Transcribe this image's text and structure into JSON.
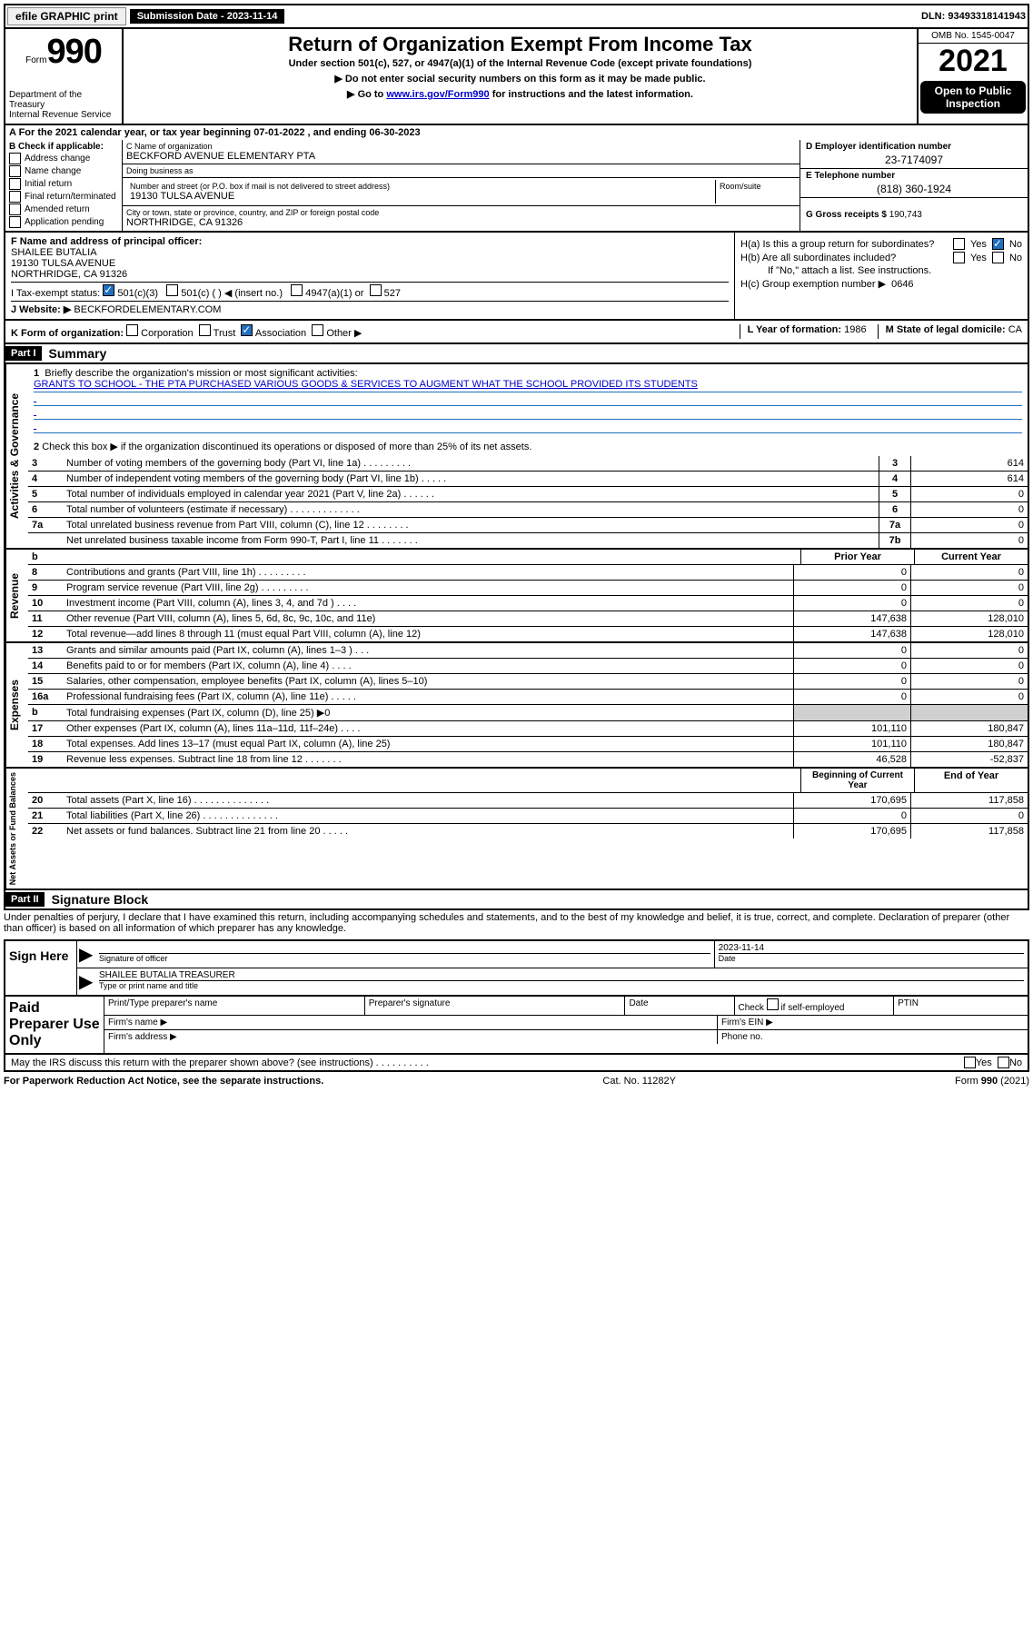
{
  "top": {
    "efile": "efile GRAPHIC print",
    "submission_label": "Submission Date - 2023-11-14",
    "dln": "DLN: 93493318141943"
  },
  "header": {
    "form_word": "Form",
    "form_num": "990",
    "dept": "Department of the Treasury\nInternal Revenue Service",
    "title": "Return of Organization Exempt From Income Tax",
    "sub": "Under section 501(c), 527, or 4947(a)(1) of the Internal Revenue Code (except private foundations)",
    "instr1": "▶ Do not enter social security numbers on this form as it may be made public.",
    "instr2_pre": "▶ Go to ",
    "instr2_link": "www.irs.gov/Form990",
    "instr2_post": " for instructions and the latest information.",
    "omb": "OMB No. 1545-0047",
    "year": "2021",
    "open": "Open to Public Inspection"
  },
  "line_a": "A For the 2021 calendar year, or tax year beginning 07-01-2022   , and ending 06-30-2023",
  "b": {
    "title": "B Check if applicable:",
    "opts": [
      "Address change",
      "Name change",
      "Initial return",
      "Final return/terminated",
      "Amended return",
      "Application pending"
    ]
  },
  "c": {
    "name_lbl": "C Name of organization",
    "name": "BECKFORD AVENUE ELEMENTARY PTA",
    "dba_lbl": "Doing business as",
    "dba": "",
    "street_lbl": "Number and street (or P.O. box if mail is not delivered to street address)",
    "street": "19130 TULSA AVENUE",
    "room_lbl": "Room/suite",
    "city_lbl": "City or town, state or province, country, and ZIP or foreign postal code",
    "city": "NORTHRIDGE, CA  91326"
  },
  "d": {
    "ein_lbl": "D Employer identification number",
    "ein": "23-7174097",
    "tel_lbl": "E Telephone number",
    "tel": "(818) 360-1924",
    "gross_lbl": "G Gross receipts $",
    "gross": "190,743"
  },
  "f": {
    "lbl": "F Name and address of principal officer:",
    "name": "SHAILEE BUTALIA",
    "street": "19130 TULSA AVENUE",
    "city": "NORTHRIDGE, CA  91326"
  },
  "i": {
    "lbl": "I    Tax-exempt status:",
    "o1": "501(c)(3)",
    "o2": "501(c) (  ) ◀ (insert no.)",
    "o3": "4947(a)(1) or",
    "o4": "527"
  },
  "j": {
    "lbl": "J    Website: ▶",
    "val": "BECKFORDELEMENTARY.COM"
  },
  "h": {
    "a_lbl": "H(a)  Is this a group return for subordinates?",
    "b_lbl": "H(b)  Are all subordinates included?",
    "b_note": "If \"No,\" attach a list. See instructions.",
    "c_lbl": "H(c)  Group exemption number ▶",
    "c_val": "0646",
    "yes": "Yes",
    "no": "No"
  },
  "k": {
    "lbl": "K Form of organization:",
    "o1": "Corporation",
    "o2": "Trust",
    "o3": "Association",
    "o4": "Other ▶"
  },
  "lm": {
    "l_lbl": "L Year of formation:",
    "l_val": "1986",
    "m_lbl": "M State of legal domicile:",
    "m_val": "CA"
  },
  "part1": {
    "tag": "Part I",
    "title": "Summary"
  },
  "mission": {
    "num": "1",
    "lbl": "Briefly describe the organization's mission or most significant activities:",
    "text": "GRANTS TO SCHOOL - THE PTA PURCHASED VARIOUS GOODS & SERVICES TO AUGMENT WHAT THE SCHOOL PROVIDED ITS STUDENTS"
  },
  "gov": {
    "side": "Activities & Governance",
    "l2": "Check this box ▶     if the organization discontinued its operations or disposed of more than 25% of its net assets.",
    "rows": [
      {
        "n": "3",
        "d": "Number of voting members of the governing body (Part VI, line 1a)    .    .    .    .    .    .    .    .    .",
        "ln": "3",
        "v": "614"
      },
      {
        "n": "4",
        "d": "Number of independent voting members of the governing body (Part VI, line 1b)   .    .    .    .    .",
        "ln": "4",
        "v": "614"
      },
      {
        "n": "5",
        "d": "Total number of individuals employed in calendar year 2021 (Part V, line 2a)    .    .    .    .    .    .",
        "ln": "5",
        "v": "0"
      },
      {
        "n": "6",
        "d": "Total number of volunteers (estimate if necessary)    .    .    .    .    .    .    .    .    .    .    .    .    .",
        "ln": "6",
        "v": "0"
      },
      {
        "n": "7a",
        "d": "Total unrelated business revenue from Part VIII, column (C), line 12   .    .    .    .    .    .    .    .",
        "ln": "7a",
        "v": "0"
      },
      {
        "n": "",
        "d": "Net unrelated business taxable income from Form 990-T, Part I, line 11   .    .    .    .    .    .    .",
        "ln": "7b",
        "v": "0"
      }
    ]
  },
  "rev": {
    "side": "Revenue",
    "head_prior": "Prior Year",
    "head_curr": "Current Year",
    "rows": [
      {
        "n": "8",
        "d": "Contributions and grants (Part VIII, line 1h)    .    .    .    .    .    .    .    .    .",
        "p": "0",
        "c": "0"
      },
      {
        "n": "9",
        "d": "Program service revenue (Part VIII, line 2g)    .    .    .    .    .    .    .    .    .",
        "p": "0",
        "c": "0"
      },
      {
        "n": "10",
        "d": "Investment income (Part VIII, column (A), lines 3, 4, and 7d )    .    .    .    .",
        "p": "0",
        "c": "0"
      },
      {
        "n": "11",
        "d": "Other revenue (Part VIII, column (A), lines 5, 6d, 8c, 9c, 10c, and 11e)",
        "p": "147,638",
        "c": "128,010"
      },
      {
        "n": "12",
        "d": "Total revenue—add lines 8 through 11 (must equal Part VIII, column (A), line 12)",
        "p": "147,638",
        "c": "128,010"
      }
    ]
  },
  "exp": {
    "side": "Expenses",
    "rows": [
      {
        "n": "13",
        "d": "Grants and similar amounts paid (Part IX, column (A), lines 1–3 )   .    .    .",
        "p": "0",
        "c": "0"
      },
      {
        "n": "14",
        "d": "Benefits paid to or for members (Part IX, column (A), line 4)    .    .    .    .",
        "p": "0",
        "c": "0"
      },
      {
        "n": "15",
        "d": "Salaries, other compensation, employee benefits (Part IX, column (A), lines 5–10)",
        "p": "0",
        "c": "0"
      },
      {
        "n": "16a",
        "d": "Professional fundraising fees (Part IX, column (A), line 11e)    .    .    .    .    .",
        "p": "0",
        "c": "0"
      },
      {
        "n": "b",
        "d": "Total fundraising expenses (Part IX, column (D), line 25) ▶0",
        "p": "",
        "c": "",
        "shade": true
      },
      {
        "n": "17",
        "d": "Other expenses (Part IX, column (A), lines 11a–11d, 11f–24e)   .    .    .    .",
        "p": "101,110",
        "c": "180,847"
      },
      {
        "n": "18",
        "d": "Total expenses. Add lines 13–17 (must equal Part IX, column (A), line 25)",
        "p": "101,110",
        "c": "180,847"
      },
      {
        "n": "19",
        "d": "Revenue less expenses. Subtract line 18 from line 12    .    .    .    .    .    .    .",
        "p": "46,528",
        "c": "-52,837"
      }
    ]
  },
  "net": {
    "side": "Net Assets or Fund Balances",
    "head_beg": "Beginning of Current Year",
    "head_end": "End of Year",
    "rows": [
      {
        "n": "20",
        "d": "Total assets (Part X, line 16)    .    .    .    .    .    .    .    .    .    .    .    .    .    .",
        "p": "170,695",
        "c": "117,858"
      },
      {
        "n": "21",
        "d": "Total liabilities (Part X, line 26)    .    .    .    .    .    .    .    .    .    .    .    .    .    .",
        "p": "0",
        "c": "0"
      },
      {
        "n": "22",
        "d": "Net assets or fund balances. Subtract line 21 from line 20    .    .    .    .    .",
        "p": "170,695",
        "c": "117,858"
      }
    ]
  },
  "part2": {
    "tag": "Part II",
    "title": "Signature Block"
  },
  "penalty": "Under penalties of perjury, I declare that I have examined this return, including accompanying schedules and statements, and to the best of my knowledge and belief, it is true, correct, and complete. Declaration of preparer (other than officer) is based on all information of which preparer has any knowledge.",
  "sign": {
    "side": "Sign Here",
    "sig_lbl": "Signature of officer",
    "date_lbl": "Date",
    "date": "2023-11-14",
    "name": "SHAILEE BUTALIA  TREASURER",
    "name_lbl": "Type or print name and title"
  },
  "prep": {
    "side": "Paid Preparer Use Only",
    "c1": "Print/Type preparer's name",
    "c2": "Preparer's signature",
    "c3": "Date",
    "c4_pre": "Check",
    "c4_post": "if self-employed",
    "c5": "PTIN",
    "firm_name": "Firm's name    ▶",
    "firm_ein": "Firm's EIN ▶",
    "firm_addr": "Firm's address ▶",
    "phone": "Phone no."
  },
  "may": {
    "text": "May the IRS discuss this return with the preparer shown above? (see instructions)    .    .    .    .    .    .    .    .    .    .",
    "yes": "Yes",
    "no": "No"
  },
  "footer": {
    "left": "For Paperwork Reduction Act Notice, see the separate instructions.",
    "mid": "Cat. No. 11282Y",
    "right": "Form 990 (2021)"
  }
}
